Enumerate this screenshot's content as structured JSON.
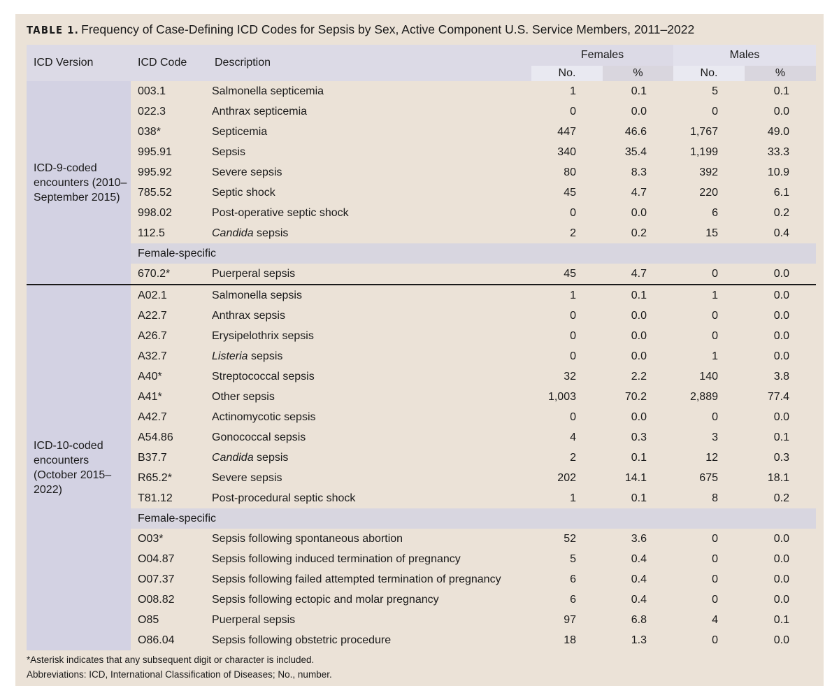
{
  "title": {
    "label": "TABLE 1.",
    "text": "Frequency of Case-Defining ICD Codes for Sepsis by Sex, Active Component U.S. Service Members, 2011–2022"
  },
  "header": {
    "version": "ICD Version",
    "code": "ICD Code",
    "description": "Description",
    "females": "Females",
    "males": "Males",
    "no": "No.",
    "pct": "%"
  },
  "groups": [
    {
      "version": "ICD-9-coded encounters (2010–September 2015)",
      "rows": [
        {
          "code": "003.1",
          "italic": "",
          "desc": "Salmonella septicemia",
          "f_no": "1",
          "f_pct": "0.1",
          "m_no": "5",
          "m_pct": "0.1"
        },
        {
          "code": "022.3",
          "italic": "",
          "desc": "Anthrax septicemia",
          "f_no": "0",
          "f_pct": "0.0",
          "m_no": "0",
          "m_pct": "0.0"
        },
        {
          "code": "038*",
          "italic": "",
          "desc": "Septicemia",
          "f_no": "447",
          "f_pct": "46.6",
          "m_no": "1,767",
          "m_pct": "49.0"
        },
        {
          "code": "995.91",
          "italic": "",
          "desc": "Sepsis",
          "f_no": "340",
          "f_pct": "35.4",
          "m_no": "1,199",
          "m_pct": "33.3"
        },
        {
          "code": "995.92",
          "italic": "",
          "desc": "Severe sepsis",
          "f_no": "80",
          "f_pct": "8.3",
          "m_no": "392",
          "m_pct": "10.9"
        },
        {
          "code": "785.52",
          "italic": "",
          "desc": "Septic shock",
          "f_no": "45",
          "f_pct": "4.7",
          "m_no": "220",
          "m_pct": "6.1"
        },
        {
          "code": "998.02",
          "italic": "",
          "desc": "Post-operative septic shock",
          "f_no": "0",
          "f_pct": "0.0",
          "m_no": "6",
          "m_pct": "0.2"
        },
        {
          "code": "112.5",
          "italic": "Candida",
          "desc": " sepsis",
          "f_no": "2",
          "f_pct": "0.2",
          "m_no": "15",
          "m_pct": "0.4"
        }
      ],
      "female_label": "Female-specific",
      "female_rows": [
        {
          "code": "670.2*",
          "italic": "",
          "desc": "Puerperal sepsis",
          "f_no": "45",
          "f_pct": "4.7",
          "m_no": "0",
          "m_pct": "0.0"
        }
      ]
    },
    {
      "version": "ICD-10-coded encounters (October 2015–2022)",
      "rows": [
        {
          "code": "A02.1",
          "italic": "",
          "desc": "Salmonella sepsis",
          "f_no": "1",
          "f_pct": "0.1",
          "m_no": "1",
          "m_pct": "0.0"
        },
        {
          "code": "A22.7",
          "italic": "",
          "desc": "Anthrax sepsis",
          "f_no": "0",
          "f_pct": "0.0",
          "m_no": "0",
          "m_pct": "0.0"
        },
        {
          "code": "A26.7",
          "italic": "",
          "desc": "Erysipelothrix sepsis",
          "f_no": "0",
          "f_pct": "0.0",
          "m_no": "0",
          "m_pct": "0.0"
        },
        {
          "code": "A32.7",
          "italic": "Listeria",
          "desc": " sepsis",
          "f_no": "0",
          "f_pct": "0.0",
          "m_no": "1",
          "m_pct": "0.0"
        },
        {
          "code": "A40*",
          "italic": "",
          "desc": "Streptococcal sepsis",
          "f_no": "32",
          "f_pct": "2.2",
          "m_no": "140",
          "m_pct": "3.8"
        },
        {
          "code": "A41*",
          "italic": "",
          "desc": "Other sepsis",
          "f_no": "1,003",
          "f_pct": "70.2",
          "m_no": "2,889",
          "m_pct": "77.4"
        },
        {
          "code": "A42.7",
          "italic": "",
          "desc": "Actinomycotic sepsis",
          "f_no": "0",
          "f_pct": "0.0",
          "m_no": "0",
          "m_pct": "0.0"
        },
        {
          "code": "A54.86",
          "italic": "",
          "desc": "Gonococcal sepsis",
          "f_no": "4",
          "f_pct": "0.3",
          "m_no": "3",
          "m_pct": "0.1"
        },
        {
          "code": "B37.7",
          "italic": "Candida",
          "desc": " sepsis",
          "f_no": "2",
          "f_pct": "0.1",
          "m_no": "12",
          "m_pct": "0.3"
        },
        {
          "code": "R65.2*",
          "italic": "",
          "desc": "Severe sepsis",
          "f_no": "202",
          "f_pct": "14.1",
          "m_no": "675",
          "m_pct": "18.1"
        },
        {
          "code": "T81.12",
          "italic": "",
          "desc": "Post-procedural septic shock",
          "f_no": "1",
          "f_pct": "0.1",
          "m_no": "8",
          "m_pct": "0.2"
        }
      ],
      "female_label": "Female-specific",
      "female_rows": [
        {
          "code": "O03*",
          "italic": "",
          "desc": "Sepsis following spontaneous abortion",
          "f_no": "52",
          "f_pct": "3.6",
          "m_no": "0",
          "m_pct": "0.0"
        },
        {
          "code": "O04.87",
          "italic": "",
          "desc": "Sepsis following induced termination of pregnancy",
          "f_no": "5",
          "f_pct": "0.4",
          "m_no": "0",
          "m_pct": "0.0"
        },
        {
          "code": "O07.37",
          "italic": "",
          "desc": "Sepsis following failed attempted termination of pregnancy",
          "f_no": "6",
          "f_pct": "0.4",
          "m_no": "0",
          "m_pct": "0.0"
        },
        {
          "code": "O08.82",
          "italic": "",
          "desc": "Sepsis following ectopic and molar pregnancy",
          "f_no": "6",
          "f_pct": "0.4",
          "m_no": "0",
          "m_pct": "0.0"
        },
        {
          "code": "O85",
          "italic": "",
          "desc": "Puerperal sepsis",
          "f_no": "97",
          "f_pct": "6.8",
          "m_no": "4",
          "m_pct": "0.1"
        },
        {
          "code": "O86.04",
          "italic": "",
          "desc": "Sepsis following obstetric procedure",
          "f_no": "18",
          "f_pct": "1.3",
          "m_no": "0",
          "m_pct": "0.0"
        }
      ]
    }
  ],
  "footnotes": [
    "*Asterisk indicates that any subsequent digit or character is included.",
    "Abbreviations: ICD, International Classification of Diseases; No., number."
  ]
}
